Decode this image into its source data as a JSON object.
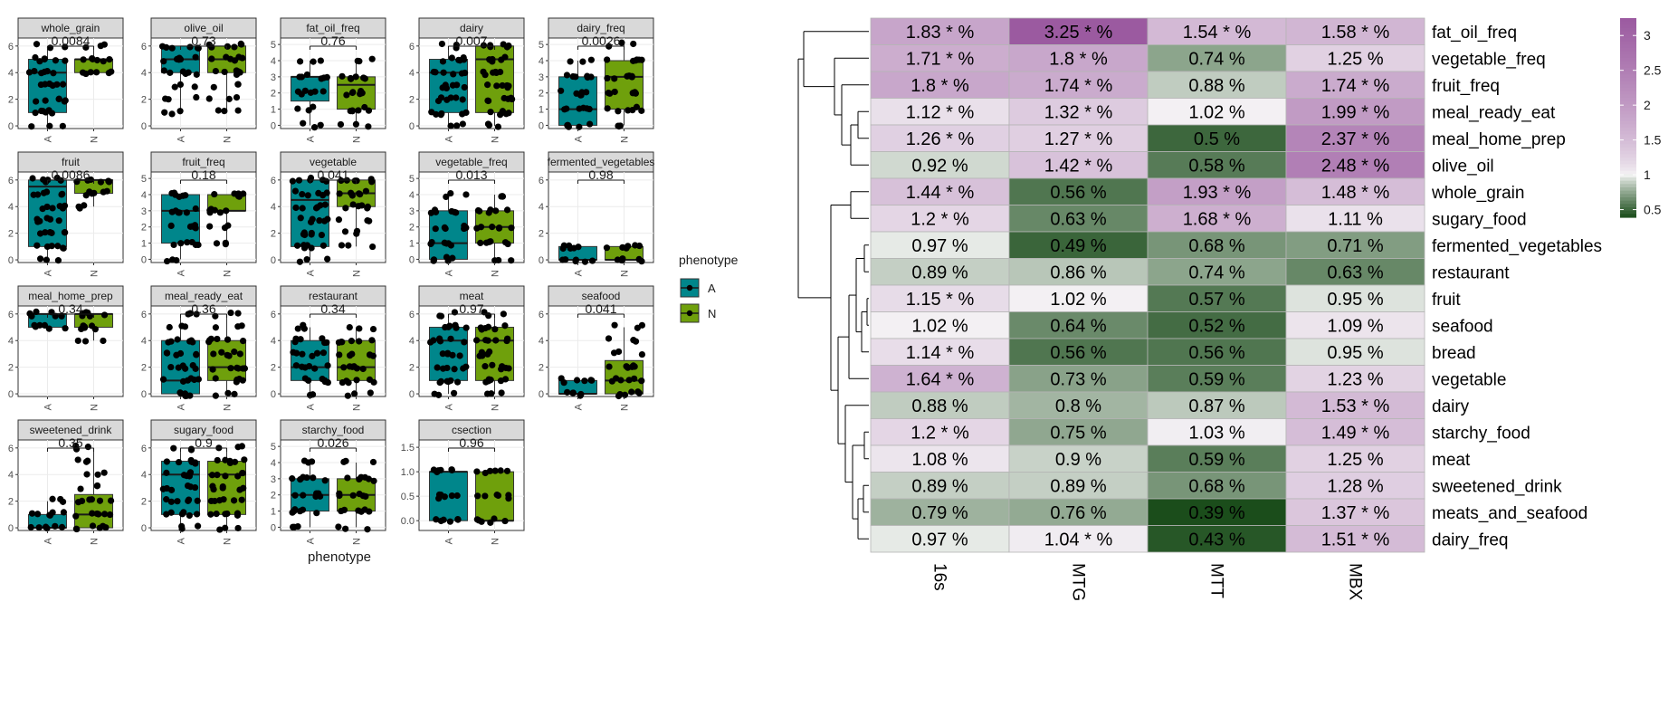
{
  "chart_data": [
    {
      "type": "box",
      "x_tick_labels": [
        "A",
        "N"
      ],
      "xlabel": "phenotype",
      "legend": {
        "title": "phenotype",
        "entries": [
          {
            "label": "A",
            "color": "#00868B"
          },
          {
            "label": "N",
            "color": "#6FA00C"
          }
        ],
        "placement": "right"
      },
      "panels": [
        {
          "name": "whole_grain",
          "p": "0.0084",
          "yticks": [
            "0",
            "2",
            "4",
            "6"
          ],
          "ylim": [
            -0.2,
            6.6
          ],
          "boxes": [
            {
              "group": "A",
              "q1": 1.0,
              "median": 4.0,
              "q3": 5.0,
              "lo": 0.0,
              "hi": 6.0
            },
            {
              "group": "N",
              "q1": 4.0,
              "median": 5.0,
              "q3": 5.0,
              "lo": 4.0,
              "hi": 6.0
            }
          ]
        },
        {
          "name": "olive_oil",
          "p": "0.73",
          "yticks": [
            "0",
            "2",
            "4",
            "6"
          ],
          "ylim": [
            -0.2,
            6.6
          ],
          "boxes": [
            {
              "group": "A",
              "q1": 4.0,
              "median": 5.0,
              "q3": 6.0,
              "lo": 1.0,
              "hi": 6.0
            },
            {
              "group": "N",
              "q1": 4.0,
              "median": 5.0,
              "q3": 6.0,
              "lo": 1.0,
              "hi": 6.0
            }
          ]
        },
        {
          "name": "fat_oil_freq",
          "p": "0.76",
          "yticks": [
            "0",
            "1",
            "2",
            "3",
            "4",
            "5"
          ],
          "ylim": [
            -0.2,
            5.4
          ],
          "boxes": [
            {
              "group": "A",
              "q1": 1.5,
              "median": 3.0,
              "q3": 3.0,
              "lo": 0.0,
              "hi": 4.0
            },
            {
              "group": "N",
              "q1": 1.0,
              "median": 2.5,
              "q3": 3.0,
              "lo": 0.0,
              "hi": 4.0
            }
          ]
        },
        {
          "name": "dairy",
          "p": "0.007",
          "yticks": [
            "0",
            "2",
            "4",
            "6"
          ],
          "ylim": [
            -0.2,
            6.6
          ],
          "boxes": [
            {
              "group": "A",
              "q1": 1.0,
              "median": 4.0,
              "q3": 5.0,
              "lo": 0.0,
              "hi": 6.0
            },
            {
              "group": "N",
              "q1": 1.0,
              "median": 5.0,
              "q3": 6.0,
              "lo": 0.0,
              "hi": 6.0
            }
          ]
        },
        {
          "name": "dairy_freq",
          "p": "0.0026",
          "yticks": [
            "0",
            "1",
            "2",
            "3",
            "4",
            "5"
          ],
          "ylim": [
            -0.2,
            5.4
          ],
          "boxes": [
            {
              "group": "A",
              "q1": 0.0,
              "median": 1.0,
              "q3": 3.0,
              "lo": 0.0,
              "hi": 4.0
            },
            {
              "group": "N",
              "q1": 1.0,
              "median": 3.0,
              "q3": 4.0,
              "lo": 0.0,
              "hi": 5.0
            }
          ]
        },
        {
          "name": "fruit",
          "p": "0.0086",
          "yticks": [
            "0",
            "2",
            "4",
            "6"
          ],
          "ylim": [
            -0.2,
            6.6
          ],
          "boxes": [
            {
              "group": "A",
              "q1": 1.0,
              "median": 5.5,
              "q3": 6.0,
              "lo": 0.0,
              "hi": 6.0
            },
            {
              "group": "N",
              "q1": 5.0,
              "median": 6.0,
              "q3": 6.0,
              "lo": 4.0,
              "hi": 6.0
            }
          ]
        },
        {
          "name": "fruit_freq",
          "p": "0.18",
          "yticks": [
            "0",
            "1",
            "2",
            "3",
            "4",
            "5"
          ],
          "ylim": [
            -0.2,
            5.4
          ],
          "boxes": [
            {
              "group": "A",
              "q1": 1.0,
              "median": 3.0,
              "q3": 4.0,
              "lo": 0.0,
              "hi": 4.0
            },
            {
              "group": "N",
              "q1": 3.0,
              "median": 3.0,
              "q3": 4.0,
              "lo": 1.0,
              "hi": 4.0
            }
          ]
        },
        {
          "name": "vegetable",
          "p": "0.041",
          "yticks": [
            "0",
            "2",
            "4",
            "6"
          ],
          "ylim": [
            -0.2,
            6.6
          ],
          "boxes": [
            {
              "group": "A",
              "q1": 1.0,
              "median": 4.5,
              "q3": 6.0,
              "lo": 0.0,
              "hi": 6.0
            },
            {
              "group": "N",
              "q1": 4.0,
              "median": 5.0,
              "q3": 6.0,
              "lo": 1.0,
              "hi": 6.0
            }
          ]
        },
        {
          "name": "vegetable_freq",
          "p": "0.013",
          "yticks": [
            "0",
            "1",
            "2",
            "3",
            "4",
            "5"
          ],
          "ylim": [
            -0.2,
            5.4
          ],
          "boxes": [
            {
              "group": "A",
              "q1": 0.0,
              "median": 1.0,
              "q3": 3.0,
              "lo": 0.0,
              "hi": 4.0
            },
            {
              "group": "N",
              "q1": 1.0,
              "median": 2.0,
              "q3": 3.0,
              "lo": 0.0,
              "hi": 4.0
            }
          ]
        },
        {
          "name": "fermented_vegetables",
          "p": "0.98",
          "yticks": [
            "0",
            "2",
            "4",
            "6"
          ],
          "ylim": [
            -0.2,
            6.6
          ],
          "boxes": [
            {
              "group": "A",
              "q1": 0.0,
              "median": 0.0,
              "q3": 1.0,
              "lo": 0.0,
              "hi": 1.0
            },
            {
              "group": "N",
              "q1": 0.0,
              "median": 0.0,
              "q3": 1.0,
              "lo": 0.0,
              "hi": 1.0
            }
          ]
        },
        {
          "name": "meal_home_prep",
          "p": "0.34",
          "yticks": [
            "0",
            "2",
            "4",
            "6"
          ],
          "ylim": [
            -0.2,
            6.6
          ],
          "boxes": [
            {
              "group": "A",
              "q1": 5.0,
              "median": 6.0,
              "q3": 6.0,
              "lo": 5.0,
              "hi": 6.0
            },
            {
              "group": "N",
              "q1": 5.0,
              "median": 6.0,
              "q3": 6.0,
              "lo": 4.0,
              "hi": 6.0
            }
          ]
        },
        {
          "name": "meal_ready_eat",
          "p": "0.36",
          "yticks": [
            "0",
            "2",
            "4",
            "6"
          ],
          "ylim": [
            -0.2,
            6.6
          ],
          "boxes": [
            {
              "group": "A",
              "q1": 0.0,
              "median": 1.0,
              "q3": 4.0,
              "lo": 0.0,
              "hi": 6.0
            },
            {
              "group": "N",
              "q1": 1.0,
              "median": 2.0,
              "q3": 4.0,
              "lo": 0.0,
              "hi": 6.0
            }
          ]
        },
        {
          "name": "restaurant",
          "p": "0.34",
          "yticks": [
            "0",
            "2",
            "4",
            "6"
          ],
          "ylim": [
            -0.2,
            6.6
          ],
          "boxes": [
            {
              "group": "A",
              "q1": 1.0,
              "median": 2.0,
              "q3": 4.0,
              "lo": 0.0,
              "hi": 5.0
            },
            {
              "group": "N",
              "q1": 1.0,
              "median": 2.0,
              "q3": 4.0,
              "lo": 0.0,
              "hi": 5.0
            }
          ]
        },
        {
          "name": "meat",
          "p": "0.97",
          "yticks": [
            "0",
            "2",
            "4",
            "6"
          ],
          "ylim": [
            -0.2,
            6.6
          ],
          "boxes": [
            {
              "group": "A",
              "q1": 1.0,
              "median": 4.0,
              "q3": 5.0,
              "lo": 0.0,
              "hi": 6.0
            },
            {
              "group": "N",
              "q1": 1.0,
              "median": 4.0,
              "q3": 5.0,
              "lo": 0.0,
              "hi": 6.0
            }
          ]
        },
        {
          "name": "seafood",
          "p": "0.041",
          "yticks": [
            "0",
            "2",
            "4",
            "6"
          ],
          "ylim": [
            -0.2,
            6.6
          ],
          "boxes": [
            {
              "group": "A",
              "q1": 0.0,
              "median": 0.0,
              "q3": 1.0,
              "lo": 0.0,
              "hi": 1.0
            },
            {
              "group": "N",
              "q1": 0.0,
              "median": 1.0,
              "q3": 2.5,
              "lo": 0.0,
              "hi": 5.0
            }
          ]
        },
        {
          "name": "sweetened_drink",
          "p": "0.35",
          "yticks": [
            "0",
            "2",
            "4",
            "6"
          ],
          "ylim": [
            -0.2,
            6.6
          ],
          "boxes": [
            {
              "group": "A",
              "q1": 0.0,
              "median": 0.0,
              "q3": 1.0,
              "lo": 0.0,
              "hi": 2.0
            },
            {
              "group": "N",
              "q1": 0.0,
              "median": 1.0,
              "q3": 2.5,
              "lo": 0.0,
              "hi": 6.0
            }
          ]
        },
        {
          "name": "sugary_food",
          "p": "0.9",
          "yticks": [
            "0",
            "2",
            "4",
            "6"
          ],
          "ylim": [
            -0.2,
            6.6
          ],
          "boxes": [
            {
              "group": "A",
              "q1": 1.0,
              "median": 4.0,
              "q3": 5.0,
              "lo": 0.0,
              "hi": 6.0
            },
            {
              "group": "N",
              "q1": 1.0,
              "median": 4.0,
              "q3": 5.0,
              "lo": 0.0,
              "hi": 6.0
            }
          ]
        },
        {
          "name": "starchy_food",
          "p": "0.026",
          "yticks": [
            "0",
            "1",
            "2",
            "3",
            "4",
            "5"
          ],
          "ylim": [
            -0.2,
            5.4
          ],
          "boxes": [
            {
              "group": "A",
              "q1": 1.0,
              "median": 2.0,
              "q3": 3.0,
              "lo": 0.0,
              "hi": 4.0
            },
            {
              "group": "N",
              "q1": 1.0,
              "median": 2.0,
              "q3": 3.0,
              "lo": 0.0,
              "hi": 4.0
            }
          ]
        },
        {
          "name": "csection",
          "p": "0.96",
          "yticks": [
            "0.0",
            "0.5",
            "1.0",
            "1.5"
          ],
          "ylim": [
            -0.2,
            1.65
          ],
          "boxes": [
            {
              "group": "A",
              "q1": 0.0,
              "median": 1.0,
              "q3": 1.0,
              "lo": 0.0,
              "hi": 1.0
            },
            {
              "group": "N",
              "q1": 0.0,
              "median": 0.0,
              "q3": 1.0,
              "lo": 0.0,
              "hi": 1.0
            }
          ]
        }
      ]
    },
    {
      "type": "heatmap",
      "columns": [
        "16s",
        "MTG",
        "MTT",
        "MBX"
      ],
      "rows": [
        "fat_oil_freq",
        "vegetable_freq",
        "fruit_freq",
        "meal_ready_eat",
        "meal_home_prep",
        "olive_oil",
        "whole_grain",
        "sugary_food",
        "fermented_vegetables",
        "restaurant",
        "fruit",
        "seafood",
        "bread",
        "vegetable",
        "dairy",
        "starchy_food",
        "meat",
        "sweetened_drink",
        "meats_and_seafood",
        "dairy_freq"
      ],
      "values": [
        [
          1.83,
          3.25,
          1.54,
          1.58
        ],
        [
          1.71,
          1.8,
          0.74,
          1.25
        ],
        [
          1.8,
          1.74,
          0.88,
          1.74
        ],
        [
          1.12,
          1.32,
          1.02,
          1.99
        ],
        [
          1.26,
          1.27,
          0.5,
          2.37
        ],
        [
          0.92,
          1.42,
          0.58,
          2.48
        ],
        [
          1.44,
          0.56,
          1.93,
          1.48
        ],
        [
          1.2,
          0.63,
          1.68,
          1.11
        ],
        [
          0.97,
          0.49,
          0.68,
          0.71
        ],
        [
          0.89,
          0.86,
          0.74,
          0.63
        ],
        [
          1.15,
          1.02,
          0.57,
          0.95
        ],
        [
          1.02,
          0.64,
          0.52,
          1.09
        ],
        [
          1.14,
          0.56,
          0.56,
          0.95
        ],
        [
          1.64,
          0.73,
          0.59,
          1.23
        ],
        [
          0.88,
          0.8,
          0.87,
          1.53
        ],
        [
          1.2,
          0.75,
          1.03,
          1.49
        ],
        [
          1.08,
          0.9,
          0.59,
          1.25
        ],
        [
          0.89,
          0.89,
          0.68,
          1.28
        ],
        [
          0.79,
          0.76,
          0.39,
          1.37
        ],
        [
          0.97,
          1.04,
          0.43,
          1.51
        ]
      ],
      "labels": [
        [
          "1.83 * %",
          "3.25 * %",
          "1.54 * %",
          "1.58 * %"
        ],
        [
          "1.71 * %",
          "1.8 * %",
          "0.74  %",
          "1.25  %"
        ],
        [
          "1.8 * %",
          "1.74 * %",
          "0.88  %",
          "1.74 * %"
        ],
        [
          "1.12 * %",
          "1.32 * %",
          "1.02  %",
          "1.99 * %"
        ],
        [
          "1.26 * %",
          "1.27 * %",
          "0.5  %",
          "2.37 * %"
        ],
        [
          "0.92  %",
          "1.42 * %",
          "0.58  %",
          "2.48 * %"
        ],
        [
          "1.44 * %",
          "0.56  %",
          "1.93 * %",
          "1.48 * %"
        ],
        [
          "1.2 * %",
          "0.63  %",
          "1.68 * %",
          "1.11  %"
        ],
        [
          "0.97  %",
          "0.49  %",
          "0.68  %",
          "0.71  %"
        ],
        [
          "0.89  %",
          "0.86  %",
          "0.74  %",
          "0.63  %"
        ],
        [
          "1.15 * %",
          "1.02  %",
          "0.57  %",
          "0.95  %"
        ],
        [
          "1.02  %",
          "0.64  %",
          "0.52  %",
          "1.09  %"
        ],
        [
          "1.14 * %",
          "0.56  %",
          "0.56  %",
          "0.95  %"
        ],
        [
          "1.64 * %",
          "0.73  %",
          "0.59  %",
          "1.23  %"
        ],
        [
          "0.88  %",
          "0.8  %",
          "0.87  %",
          "1.53 * %"
        ],
        [
          "1.2 * %",
          "0.75  %",
          "1.03  %",
          "1.49 * %"
        ],
        [
          "1.08  %",
          "0.9  %",
          "0.59  %",
          "1.25  %"
        ],
        [
          "0.89  %",
          "0.89  %",
          "0.68  %",
          "1.28  %"
        ],
        [
          "0.79  %",
          "0.76  %",
          "0.39  %",
          "1.37 * %"
        ],
        [
          "0.97  %",
          "1.04 * %",
          "0.43  %",
          "1.51 * %"
        ]
      ],
      "colorbar": {
        "ticks": [
          "3",
          "2.5",
          "2",
          "1.5",
          "1",
          "0.5"
        ],
        "tick_values": [
          3,
          2.5,
          2,
          1.5,
          1,
          0.5
        ],
        "range": [
          0.39,
          3.25
        ],
        "midpoint": 1,
        "low_color": "#1B4D1B",
        "mid_color": "#F7F7F7",
        "high_color": "#9B5AA0",
        "placement": "right"
      },
      "dendrogram": "row, left"
    }
  ]
}
